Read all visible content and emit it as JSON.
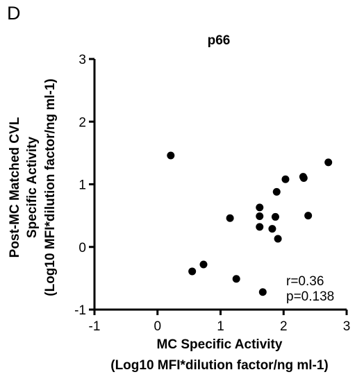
{
  "panel_label": "D",
  "chart_data": {
    "type": "scatter",
    "title": "p66",
    "xlabel_line1": "MC Specific Activity",
    "xlabel_line2": "(Log10 MFI*dilution factor/ng ml-1)",
    "ylabel_line1": "Post-MC Matched CVL",
    "ylabel_line2": "Specific Activity",
    "ylabel_line3": "(Log10 MFI*dilution factor/ng ml-1)",
    "xlim": [
      -1,
      3
    ],
    "ylim": [
      -1,
      3
    ],
    "xticks": [
      -1,
      0,
      1,
      2,
      3
    ],
    "yticks": [
      -1,
      0,
      1,
      2,
      3
    ],
    "grid": false,
    "annotation_r": "r=0.36",
    "annotation_p": "p=0.138",
    "point_color": "#000000",
    "points": [
      {
        "x": 0.21,
        "y": 1.46
      },
      {
        "x": 0.55,
        "y": -0.39
      },
      {
        "x": 0.73,
        "y": -0.28
      },
      {
        "x": 1.15,
        "y": 0.46
      },
      {
        "x": 1.25,
        "y": -0.51
      },
      {
        "x": 1.62,
        "y": 0.63
      },
      {
        "x": 1.62,
        "y": 0.49
      },
      {
        "x": 1.62,
        "y": 0.32
      },
      {
        "x": 1.67,
        "y": -0.72
      },
      {
        "x": 1.82,
        "y": 0.29
      },
      {
        "x": 1.87,
        "y": 0.48
      },
      {
        "x": 1.89,
        "y": 0.88
      },
      {
        "x": 1.91,
        "y": 0.13
      },
      {
        "x": 2.03,
        "y": 1.08
      },
      {
        "x": 2.31,
        "y": 1.12
      },
      {
        "x": 2.32,
        "y": 1.1
      },
      {
        "x": 2.39,
        "y": 0.5
      },
      {
        "x": 2.71,
        "y": 1.35
      }
    ]
  }
}
